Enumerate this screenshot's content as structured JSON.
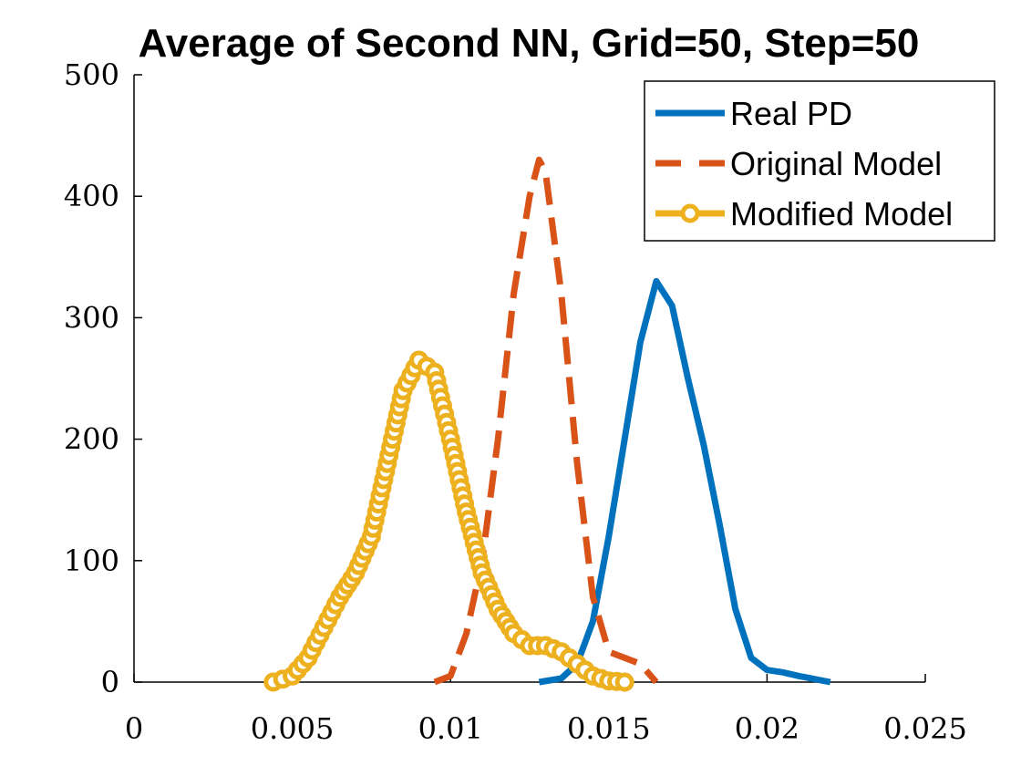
{
  "chart_data": {
    "type": "line",
    "title": "Average of Second NN, Grid=50, Step=50",
    "xlabel": "",
    "ylabel": "",
    "xlim": [
      0,
      0.025
    ],
    "ylim": [
      0,
      500
    ],
    "x_ticks": [
      0,
      0.005,
      0.01,
      0.015,
      0.02,
      0.025
    ],
    "x_tick_labels": [
      "0",
      "0.005",
      "0.01",
      "0.015",
      "0.02",
      "0.025"
    ],
    "y_ticks": [
      0,
      100,
      200,
      300,
      400,
      500
    ],
    "y_tick_labels": [
      "0",
      "100",
      "200",
      "300",
      "400",
      "500"
    ],
    "grid": false,
    "legend_position": "top-right",
    "series": [
      {
        "name": "Real PD",
        "color": "#0072BD",
        "style": "solid",
        "x": [
          0.0128,
          0.0135,
          0.014,
          0.0145,
          0.015,
          0.0155,
          0.016,
          0.0165,
          0.017,
          0.0175,
          0.018,
          0.0185,
          0.019,
          0.0195,
          0.02,
          0.0205,
          0.021,
          0.022
        ],
        "y": [
          0,
          3,
          15,
          50,
          120,
          200,
          280,
          330,
          310,
          250,
          195,
          130,
          60,
          20,
          10,
          8,
          5,
          0
        ]
      },
      {
        "name": "Original Model",
        "color": "#D95319",
        "style": "dashed",
        "x": [
          0.0095,
          0.01,
          0.0105,
          0.011,
          0.0115,
          0.012,
          0.0125,
          0.0128,
          0.013,
          0.0135,
          0.014,
          0.0145,
          0.015,
          0.0155,
          0.016,
          0.0165
        ],
        "y": [
          0,
          5,
          40,
          100,
          200,
          320,
          400,
          430,
          420,
          320,
          180,
          70,
          25,
          20,
          15,
          0
        ]
      },
      {
        "name": "Modified Model",
        "color": "#EDB120",
        "style": "dashed-circle",
        "x": [
          0.0044,
          0.005,
          0.0055,
          0.006,
          0.0065,
          0.007,
          0.0075,
          0.008,
          0.0085,
          0.009,
          0.0095,
          0.01,
          0.0105,
          0.011,
          0.0115,
          0.012,
          0.0125,
          0.013,
          0.0135,
          0.014,
          0.0145,
          0.015,
          0.0155
        ],
        "y": [
          0,
          5,
          20,
          45,
          70,
          90,
          120,
          180,
          240,
          265,
          255,
          200,
          140,
          90,
          60,
          40,
          30,
          30,
          25,
          15,
          5,
          1,
          0
        ]
      }
    ]
  }
}
